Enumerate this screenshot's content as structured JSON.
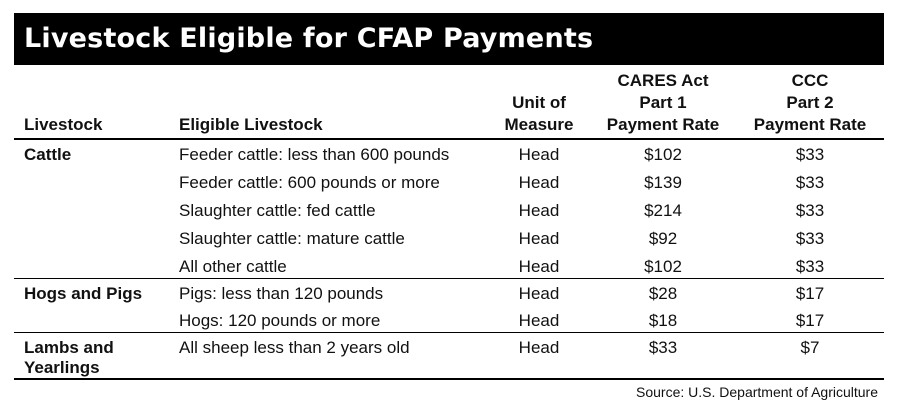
{
  "title": "Livestock Eligible for CFAP Payments",
  "headers": {
    "livestock": "Livestock",
    "eligible": "Eligible Livestock",
    "unit_line1": "Unit of",
    "unit_line2": "Measure",
    "p1_line1": "CARES Act",
    "p1_line2": "Part 1",
    "p1_line3": "Payment Rate",
    "p2_line1": "CCC",
    "p2_line2": "Part 2",
    "p2_line3": "Payment Rate"
  },
  "groups": [
    {
      "category": "Cattle",
      "rows": [
        {
          "eligible": "Feeder cattle: less than 600 pounds",
          "unit": "Head",
          "part1": "$102",
          "part2": "$33"
        },
        {
          "eligible": "Feeder cattle: 600 pounds or more",
          "unit": "Head",
          "part1": "$139",
          "part2": "$33"
        },
        {
          "eligible": "Slaughter cattle: fed cattle",
          "unit": "Head",
          "part1": "$214",
          "part2": "$33"
        },
        {
          "eligible": "Slaughter cattle: mature cattle",
          "unit": "Head",
          "part1": "$92",
          "part2": "$33"
        },
        {
          "eligible": "All other cattle",
          "unit": "Head",
          "part1": "$102",
          "part2": "$33"
        }
      ]
    },
    {
      "category": "Hogs and Pigs",
      "rows": [
        {
          "eligible": "Pigs: less than 120 pounds",
          "unit": "Head",
          "part1": "$28",
          "part2": "$17"
        },
        {
          "eligible": "Hogs: 120 pounds or more",
          "unit": "Head",
          "part1": "$18",
          "part2": "$17"
        }
      ]
    },
    {
      "category_line1": "Lambs and",
      "category_line2": "Yearlings",
      "rows": [
        {
          "eligible": "All sheep less than 2 years old",
          "unit": "Head",
          "part1": "$33",
          "part2": "$7"
        }
      ]
    }
  ],
  "source": "Source: U.S. Department of Agriculture"
}
